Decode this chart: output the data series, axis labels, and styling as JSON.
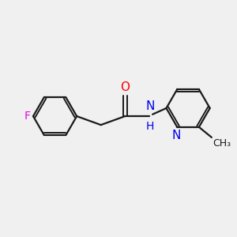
{
  "background_color": "#f0f0f0",
  "bond_color": "#1a1a1a",
  "atom_colors": {
    "F": "#e800e8",
    "O": "#ff0000",
    "N": "#0000ee",
    "C": "#1a1a1a",
    "H": "#1a1a1a"
  },
  "figure_size": [
    3.0,
    3.0
  ],
  "dpi": 100,
  "xlim": [
    0,
    10
  ],
  "ylim": [
    2,
    8
  ]
}
